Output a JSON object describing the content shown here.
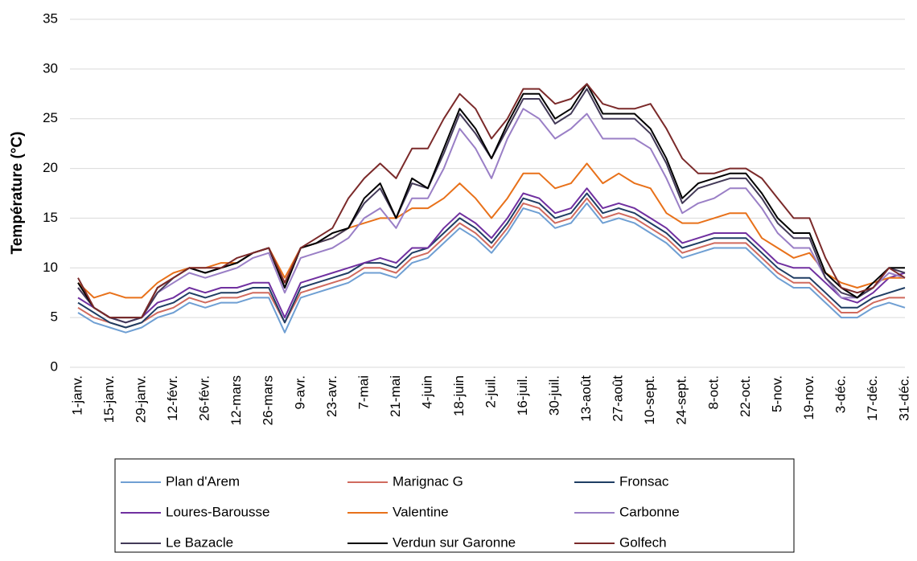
{
  "chart_data": {
    "type": "line",
    "y_label": "Température (°C)",
    "ylim": [
      0,
      35
    ],
    "yticks": [
      0,
      5,
      10,
      15,
      20,
      25,
      30,
      35
    ],
    "grid": true,
    "categories": [
      "1-janv.",
      null,
      "15-janv.",
      null,
      "29-janv.",
      null,
      "12-févr.",
      null,
      "26-févr.",
      null,
      "12-mars",
      null,
      "26-mars",
      null,
      "9-avr.",
      null,
      "23-avr.",
      null,
      "7-mai",
      null,
      "21-mai",
      null,
      "4-juin",
      null,
      "18-juin",
      null,
      "2-juil.",
      null,
      "16-juil.",
      null,
      "30-juil.",
      null,
      "13-août",
      null,
      "27-août",
      null,
      "10-sept.",
      null,
      "24-sept.",
      null,
      "8-oct.",
      null,
      "22-oct.",
      null,
      "5-nov.",
      null,
      "19-nov.",
      null,
      "3-déc.",
      null,
      "17-déc.",
      null,
      "31-déc."
    ],
    "legend": "bottom",
    "series": [
      {
        "name": "Plan d'Arem",
        "color": "#6f9fd3",
        "values": [
          5.5,
          4.5,
          4,
          3.5,
          4,
          5,
          5.5,
          6.5,
          6,
          6.5,
          6.5,
          7,
          7,
          3.5,
          7,
          7.5,
          8,
          8.5,
          9.5,
          9.5,
          9,
          10.5,
          11,
          12.5,
          14,
          13,
          11.5,
          13.5,
          16,
          15.5,
          14,
          14.5,
          16.5,
          14.5,
          15,
          14.5,
          13.5,
          12.5,
          11,
          11.5,
          12,
          12,
          12,
          10.5,
          9,
          8,
          8,
          6.5,
          5,
          5,
          6,
          6.5,
          6
        ]
      },
      {
        "name": "Marignac G",
        "color": "#d06a5e",
        "values": [
          6,
          5,
          4.5,
          4,
          4.5,
          5.5,
          6,
          7,
          6.5,
          7,
          7,
          7.5,
          7.5,
          4.5,
          7.5,
          8,
          8.5,
          9,
          10,
          10,
          9.5,
          11,
          11.5,
          13,
          14.5,
          13.5,
          12,
          14,
          16.5,
          16,
          14.5,
          15,
          17,
          15,
          15.5,
          15,
          14,
          13,
          11.5,
          12,
          12.5,
          12.5,
          12.5,
          11,
          9.5,
          8.5,
          8.5,
          7,
          5.5,
          5.5,
          6.5,
          7,
          7
        ]
      },
      {
        "name": "Fronsac",
        "color": "#1f3d63",
        "values": [
          6.5,
          5.5,
          4.5,
          4,
          4.5,
          6,
          6.5,
          7.5,
          7,
          7.5,
          7.5,
          8,
          8,
          4.5,
          8,
          8.5,
          9,
          9.5,
          10.5,
          10.5,
          10,
          11.5,
          12,
          13.5,
          15,
          14,
          12.5,
          14.5,
          17,
          16.5,
          15,
          15.5,
          17.5,
          15.5,
          16,
          15.5,
          14.5,
          13.5,
          12,
          12.5,
          13,
          13,
          13,
          11.5,
          10,
          9,
          9,
          7.5,
          6,
          6,
          7,
          7.5,
          8
        ]
      },
      {
        "name": "Loures-Barousse",
        "color": "#7030a0",
        "values": [
          7,
          6,
          5,
          4.5,
          5,
          6.5,
          7,
          8,
          7.5,
          8,
          8,
          8.5,
          8.5,
          5,
          8.5,
          9,
          9.5,
          10,
          10.5,
          11,
          10.5,
          12,
          12,
          14,
          15.5,
          14.5,
          13,
          15,
          17.5,
          17,
          15.5,
          16,
          18,
          16,
          16.5,
          16,
          15,
          14,
          12.5,
          13,
          13.5,
          13.5,
          13.5,
          12,
          10.5,
          10,
          10,
          8.5,
          7,
          6.5,
          7.5,
          9,
          9.5
        ]
      },
      {
        "name": "Valentine",
        "color": "#e8711a",
        "values": [
          8.5,
          7,
          7.5,
          7,
          7,
          8.5,
          9.5,
          10,
          10,
          10.5,
          10.5,
          11.5,
          12,
          9,
          12,
          12.5,
          13,
          14,
          14.5,
          15,
          15,
          16,
          16,
          17,
          18.5,
          17,
          15,
          17,
          19.5,
          19.5,
          18,
          18.5,
          20.5,
          18.5,
          19.5,
          18.5,
          18,
          15.5,
          14.5,
          14.5,
          15,
          15.5,
          15.5,
          13,
          12,
          11,
          11.5,
          9.5,
          8.5,
          8,
          8.5,
          9,
          9
        ]
      },
      {
        "name": "Carbonne",
        "color": "#9a7fc6",
        "values": [
          8,
          6,
          5,
          4.5,
          5,
          7.5,
          8.5,
          9.5,
          9,
          9.5,
          10,
          11,
          11.5,
          7.5,
          11,
          11.5,
          12,
          13,
          15,
          16,
          14,
          17,
          17,
          20,
          24,
          22,
          19,
          23,
          26,
          25,
          23,
          24,
          25.5,
          23,
          23,
          23,
          22,
          19,
          15.5,
          16.5,
          17,
          18,
          18,
          16,
          13.5,
          12,
          12,
          9,
          7,
          7,
          8,
          9.5,
          9
        ]
      },
      {
        "name": "Le Bazacle",
        "color": "#433a58",
        "values": [
          8,
          6,
          5,
          4.5,
          5,
          7.5,
          9,
          10,
          9.5,
          10,
          10.5,
          11.5,
          12,
          8,
          12,
          12.5,
          13,
          14,
          16.5,
          18,
          15,
          18.5,
          18,
          21.5,
          25.5,
          23.5,
          21,
          24,
          27,
          27,
          24.5,
          25.5,
          28,
          25,
          25,
          25,
          23.5,
          20.5,
          16.5,
          18,
          18.5,
          19,
          19,
          17,
          14.5,
          13,
          13,
          9,
          7.5,
          7,
          8,
          10,
          9.5
        ]
      },
      {
        "name": "Verdun sur Garonne",
        "color": "#000000",
        "values": [
          8.5,
          6,
          5,
          5,
          5,
          8,
          9,
          10,
          9.5,
          10,
          10.5,
          11.5,
          12,
          8,
          12,
          12.5,
          13.5,
          14,
          17,
          18.5,
          15,
          19,
          18,
          22,
          26,
          24,
          21,
          24.5,
          27.5,
          27.5,
          25,
          26,
          28.5,
          25.5,
          25.5,
          25.5,
          24,
          21,
          17,
          18.5,
          19,
          19.5,
          19.5,
          17.5,
          15,
          13.5,
          13.5,
          9.5,
          8,
          7,
          8.5,
          10,
          10
        ]
      },
      {
        "name": "Golfech",
        "color": "#7b2a2a",
        "values": [
          9,
          6,
          5,
          5,
          5,
          8,
          9,
          10,
          10,
          10,
          11,
          11.5,
          12,
          8.5,
          12,
          13,
          14,
          17,
          19,
          20.5,
          19,
          22,
          22,
          25,
          27.5,
          26,
          23,
          25,
          28,
          28,
          26.5,
          27,
          28.5,
          26.5,
          26,
          26,
          26.5,
          24,
          21,
          19.5,
          19.5,
          20,
          20,
          19,
          17,
          15,
          15,
          11,
          8,
          7.5,
          8,
          10,
          9
        ]
      }
    ]
  }
}
